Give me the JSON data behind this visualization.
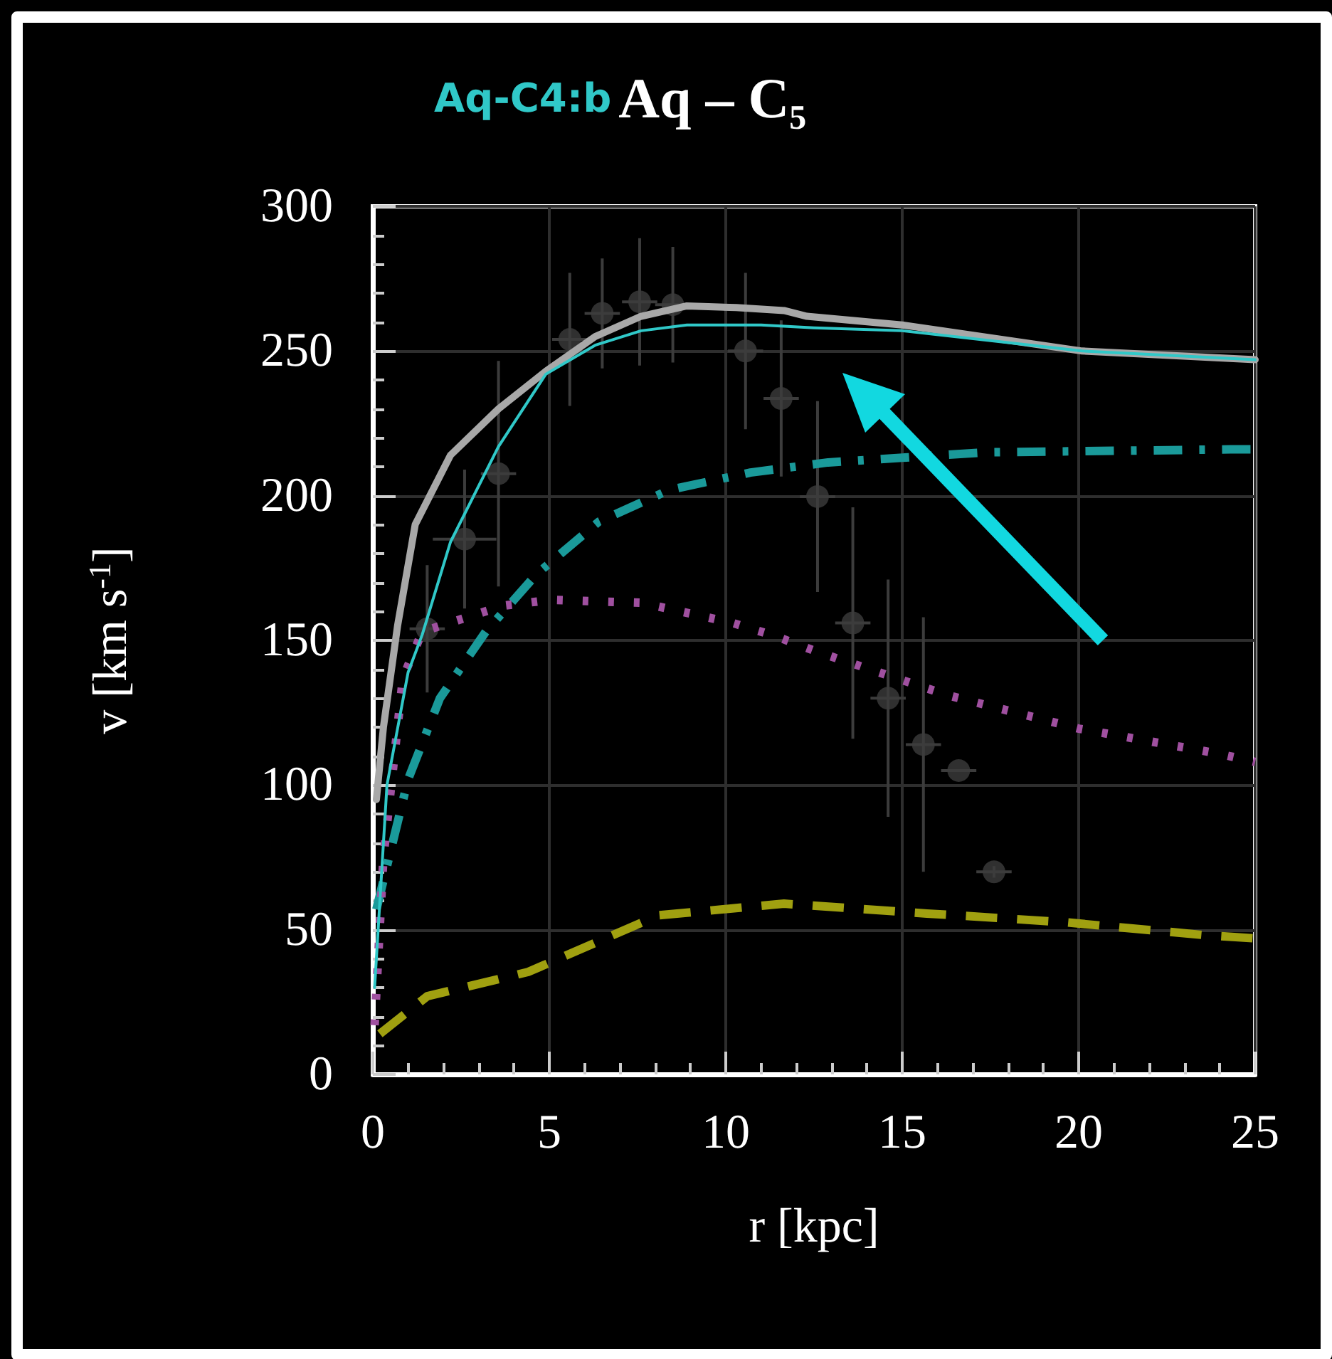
{
  "chart_data": {
    "type": "line",
    "title": "Aq – C₅",
    "xlabel": "r [kpc]",
    "ylabel": "v [km s$^{-1}$]",
    "xlim": [
      0,
      25
    ],
    "xticks": [
      0,
      5,
      10,
      15,
      20,
      25
    ],
    "ylim": [
      0,
      300
    ],
    "yticks": [
      0,
      50,
      100,
      150,
      200,
      250,
      300
    ],
    "grid": true,
    "marker": "none",
    "series": [
      {
        "color": "#a8a8a8",
        "line_style": "solid",
        "x": [
          0.1,
          0.3,
          0.7,
          1.2,
          2.2,
          3.56,
          4.9,
          6.3,
          7.6,
          8.9,
          10.3,
          11.65,
          12.3,
          15,
          20.1,
          25
        ],
        "values": [
          95,
          120,
          155,
          190,
          214,
          230,
          243,
          255,
          262,
          265.6,
          265,
          264,
          262,
          259,
          250,
          247
        ]
      },
      {
        "name": "Aq-C4:b",
        "color": "#30c8c8",
        "line_style": "solid",
        "x": [
          0.05,
          0.2,
          0.4,
          1.0,
          1.4,
          2.2,
          3.56,
          4.9,
          6.3,
          7.6,
          8.9,
          11,
          12.5,
          15,
          20.1,
          25
        ],
        "values": [
          30,
          60,
          100,
          139,
          152,
          184,
          217,
          242,
          252,
          257,
          259,
          259,
          258,
          257,
          250,
          247
        ]
      },
      {
        "color": "#1a9a9a",
        "line_style": "dashdot",
        "x": [
          0.1,
          1.0,
          1.9,
          3.2,
          4.65,
          6.4,
          8.4,
          10.7,
          12.9,
          17.4,
          24.3,
          25
        ],
        "values": [
          57,
          102,
          130,
          153,
          173,
          191,
          202,
          208,
          211.5,
          215,
          216,
          216
        ]
      },
      {
        "color": "#a050a0",
        "line_style": "dotted",
        "x": [
          0.05,
          0.3,
          0.85,
          1.4,
          3.7,
          5.05,
          7.6,
          10.2,
          11.4,
          12.6,
          16.3,
          20,
          23.9,
          25
        ],
        "values": [
          17,
          75,
          137,
          153,
          162,
          164,
          163,
          156,
          151.5,
          146,
          131,
          119.5,
          111,
          108
        ]
      },
      {
        "color": "#a0a010",
        "line_style": "dashed",
        "x": [
          0.2,
          1.54,
          4.4,
          8.1,
          11.65,
          15.7,
          19.6,
          23.5,
          25
        ],
        "values": [
          14,
          27,
          35.4,
          55,
          59,
          55.6,
          52.6,
          48.2,
          47
        ]
      },
      {
        "type": "scatter",
        "marker": "circle",
        "color": "#3c3c3c",
        "x": [
          1.54,
          2.6,
          3.56,
          5.58,
          6.5,
          7.56,
          8.5,
          10.56,
          11.57,
          12.6,
          13.6,
          14.6,
          15.6,
          16.6,
          17.6
        ],
        "values": [
          154,
          185,
          207.6,
          254,
          263,
          267,
          266,
          250,
          233.6,
          199.7,
          156,
          130,
          114,
          105,
          70
        ],
        "errors": [
          22,
          24,
          39,
          23,
          19,
          22,
          20,
          27,
          27,
          33,
          40,
          41,
          44,
          null,
          2
        ],
        "xerrors": [
          0.5,
          0.9,
          0.5,
          0.5,
          0.5,
          0.5,
          0.5,
          0.5,
          0.5,
          0.5,
          0.5,
          0.5,
          0.5,
          0.5,
          0.5
        ]
      }
    ]
  }
}
